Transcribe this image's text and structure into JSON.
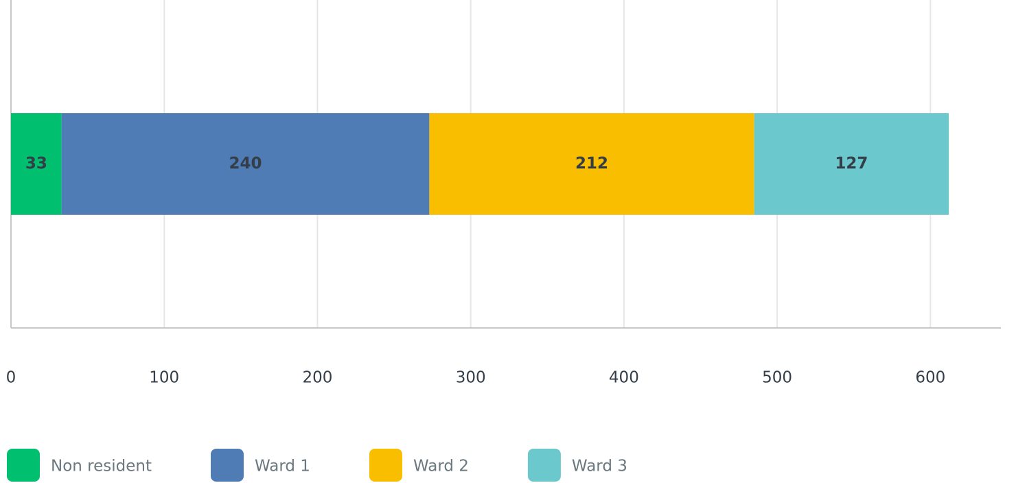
{
  "chart_data": {
    "type": "bar",
    "orientation": "horizontal",
    "stacked": true,
    "categories": [
      null
    ],
    "series": [
      {
        "name": "Non resident",
        "color": "#00bf6f",
        "values": [
          33
        ]
      },
      {
        "name": "Ward 1",
        "color": "#507cb6",
        "values": [
          240
        ]
      },
      {
        "name": "Ward 2",
        "color": "#f9be00",
        "values": [
          212
        ]
      },
      {
        "name": "Ward 3",
        "color": "#6bc8cd",
        "values": [
          127
        ]
      }
    ],
    "xlim": [
      0,
      646
    ],
    "xticks": [
      0,
      100,
      200,
      300,
      400,
      500,
      600
    ],
    "grid": true,
    "legend": "bottom"
  }
}
